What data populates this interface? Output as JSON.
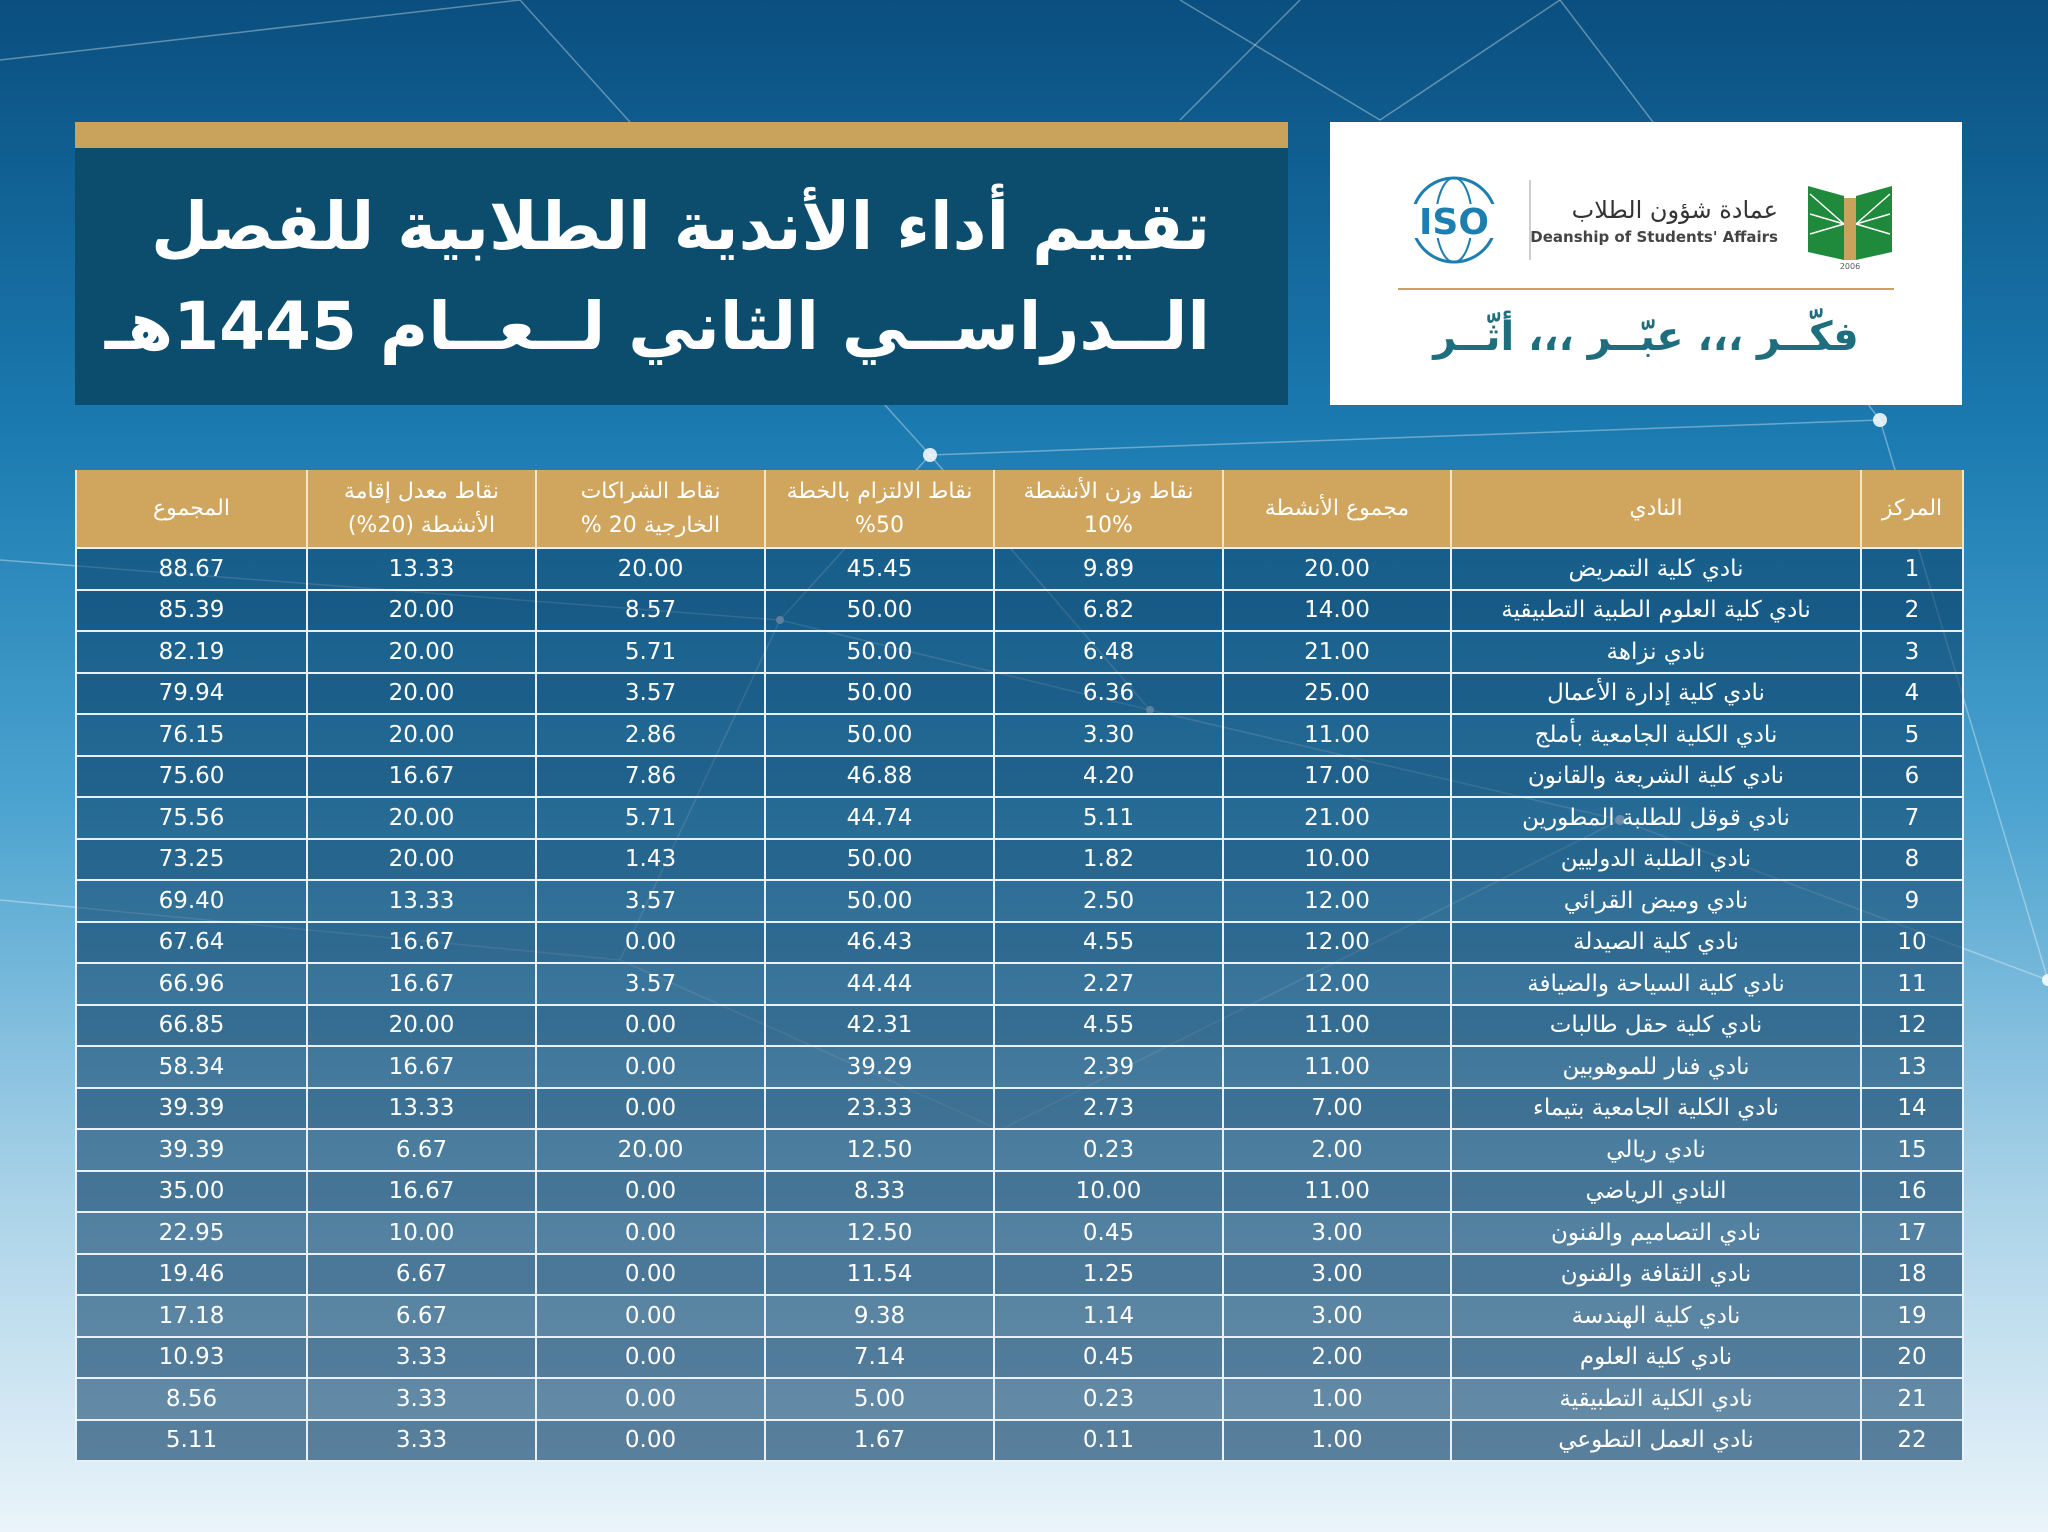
{
  "title": {
    "line1": "تقييم أداء الأندية الطلابية للفصل",
    "line2": "الــدراســي الثاني لــعــام 1445هـ"
  },
  "logo": {
    "iso_text": "ISO",
    "deanship_ar": "عمادة شؤون الطلاب",
    "deanship_en": "Deanship of Students' Affairs",
    "emblem_year": "2006",
    "slogan": "فكّــر ،،، عبّــر ،،، أثّــر"
  },
  "colors": {
    "banner": "#0c4d6e",
    "gold": "#c9a35c",
    "header": "#d0a65f",
    "slogan": "#1f6e7e"
  },
  "table": {
    "headers": {
      "rank": "المركز",
      "club": "النادي",
      "activities_total": "مجموع الأنشطة",
      "weight": "نقاط وزن الأنشطة %10",
      "commitment": "نقاط الالتزام بالخطة 50%",
      "partnerships": "نقاط الشراكات الخارجية 20 %",
      "rate": "نقاط معدل إقامة الأنشطة (20%)",
      "total": "المجموع"
    },
    "rows": [
      {
        "rank": "1",
        "club": "نادي كلية التمريض",
        "activities": "20.00",
        "weight": "9.89",
        "commitment": "45.45",
        "partnerships": "20.00",
        "rate": "13.33",
        "total": "88.67"
      },
      {
        "rank": "2",
        "club": "نادي كلية العلوم الطبية التطبيقية",
        "activities": "14.00",
        "weight": "6.82",
        "commitment": "50.00",
        "partnerships": "8.57",
        "rate": "20.00",
        "total": "85.39"
      },
      {
        "rank": "3",
        "club": "نادي نزاهة",
        "activities": "21.00",
        "weight": "6.48",
        "commitment": "50.00",
        "partnerships": "5.71",
        "rate": "20.00",
        "total": "82.19"
      },
      {
        "rank": "4",
        "club": "نادي كلية إدارة الأعمال",
        "activities": "25.00",
        "weight": "6.36",
        "commitment": "50.00",
        "partnerships": "3.57",
        "rate": "20.00",
        "total": "79.94"
      },
      {
        "rank": "5",
        "club": "نادي الكلية الجامعية بأملج",
        "activities": "11.00",
        "weight": "3.30",
        "commitment": "50.00",
        "partnerships": "2.86",
        "rate": "20.00",
        "total": "76.15"
      },
      {
        "rank": "6",
        "club": "نادي كلية الشريعة والقانون",
        "activities": "17.00",
        "weight": "4.20",
        "commitment": "46.88",
        "partnerships": "7.86",
        "rate": "16.67",
        "total": "75.60"
      },
      {
        "rank": "7",
        "club": "نادي قوقل للطلبة المطورين",
        "activities": "21.00",
        "weight": "5.11",
        "commitment": "44.74",
        "partnerships": "5.71",
        "rate": "20.00",
        "total": "75.56"
      },
      {
        "rank": "8",
        "club": "نادي الطلبة الدوليين",
        "activities": "10.00",
        "weight": "1.82",
        "commitment": "50.00",
        "partnerships": "1.43",
        "rate": "20.00",
        "total": "73.25"
      },
      {
        "rank": "9",
        "club": "نادي وميض القرائي",
        "activities": "12.00",
        "weight": "2.50",
        "commitment": "50.00",
        "partnerships": "3.57",
        "rate": "13.33",
        "total": "69.40"
      },
      {
        "rank": "10",
        "club": "نادي كلية الصيدلة",
        "activities": "12.00",
        "weight": "4.55",
        "commitment": "46.43",
        "partnerships": "0.00",
        "rate": "16.67",
        "total": "67.64"
      },
      {
        "rank": "11",
        "club": "نادي كلية السياحة والضيافة",
        "activities": "12.00",
        "weight": "2.27",
        "commitment": "44.44",
        "partnerships": "3.57",
        "rate": "16.67",
        "total": "66.96"
      },
      {
        "rank": "12",
        "club": "نادي كلية حقل طالبات",
        "activities": "11.00",
        "weight": "4.55",
        "commitment": "42.31",
        "partnerships": "0.00",
        "rate": "20.00",
        "total": "66.85"
      },
      {
        "rank": "13",
        "club": "نادي فنار للموهوبين",
        "activities": "11.00",
        "weight": "2.39",
        "commitment": "39.29",
        "partnerships": "0.00",
        "rate": "16.67",
        "total": "58.34"
      },
      {
        "rank": "14",
        "club": "نادي الكلية الجامعية بتيماء",
        "activities": "7.00",
        "weight": "2.73",
        "commitment": "23.33",
        "partnerships": "0.00",
        "rate": "13.33",
        "total": "39.39"
      },
      {
        "rank": "15",
        "club": "نادي ريالي",
        "activities": "2.00",
        "weight": "0.23",
        "commitment": "12.50",
        "partnerships": "20.00",
        "rate": "6.67",
        "total": "39.39"
      },
      {
        "rank": "16",
        "club": "النادي الرياضي",
        "activities": "11.00",
        "weight": "10.00",
        "commitment": "8.33",
        "partnerships": "0.00",
        "rate": "16.67",
        "total": "35.00"
      },
      {
        "rank": "17",
        "club": "نادي التصاميم والفنون",
        "activities": "3.00",
        "weight": "0.45",
        "commitment": "12.50",
        "partnerships": "0.00",
        "rate": "10.00",
        "total": "22.95"
      },
      {
        "rank": "18",
        "club": "نادي الثقافة والفنون",
        "activities": "3.00",
        "weight": "1.25",
        "commitment": "11.54",
        "partnerships": "0.00",
        "rate": "6.67",
        "total": "19.46"
      },
      {
        "rank": "19",
        "club": "نادي كلية الهندسة",
        "activities": "3.00",
        "weight": "1.14",
        "commitment": "9.38",
        "partnerships": "0.00",
        "rate": "6.67",
        "total": "17.18"
      },
      {
        "rank": "20",
        "club": "نادي كلية العلوم",
        "activities": "2.00",
        "weight": "0.45",
        "commitment": "7.14",
        "partnerships": "0.00",
        "rate": "3.33",
        "total": "10.93"
      },
      {
        "rank": "21",
        "club": "نادي الكلية التطبيقية",
        "activities": "1.00",
        "weight": "0.23",
        "commitment": "5.00",
        "partnerships": "0.00",
        "rate": "3.33",
        "total": "8.56"
      },
      {
        "rank": "22",
        "club": "نادي العمل التطوعي",
        "activities": "1.00",
        "weight": "0.11",
        "commitment": "1.67",
        "partnerships": "0.00",
        "rate": "3.33",
        "total": "5.11"
      }
    ]
  }
}
